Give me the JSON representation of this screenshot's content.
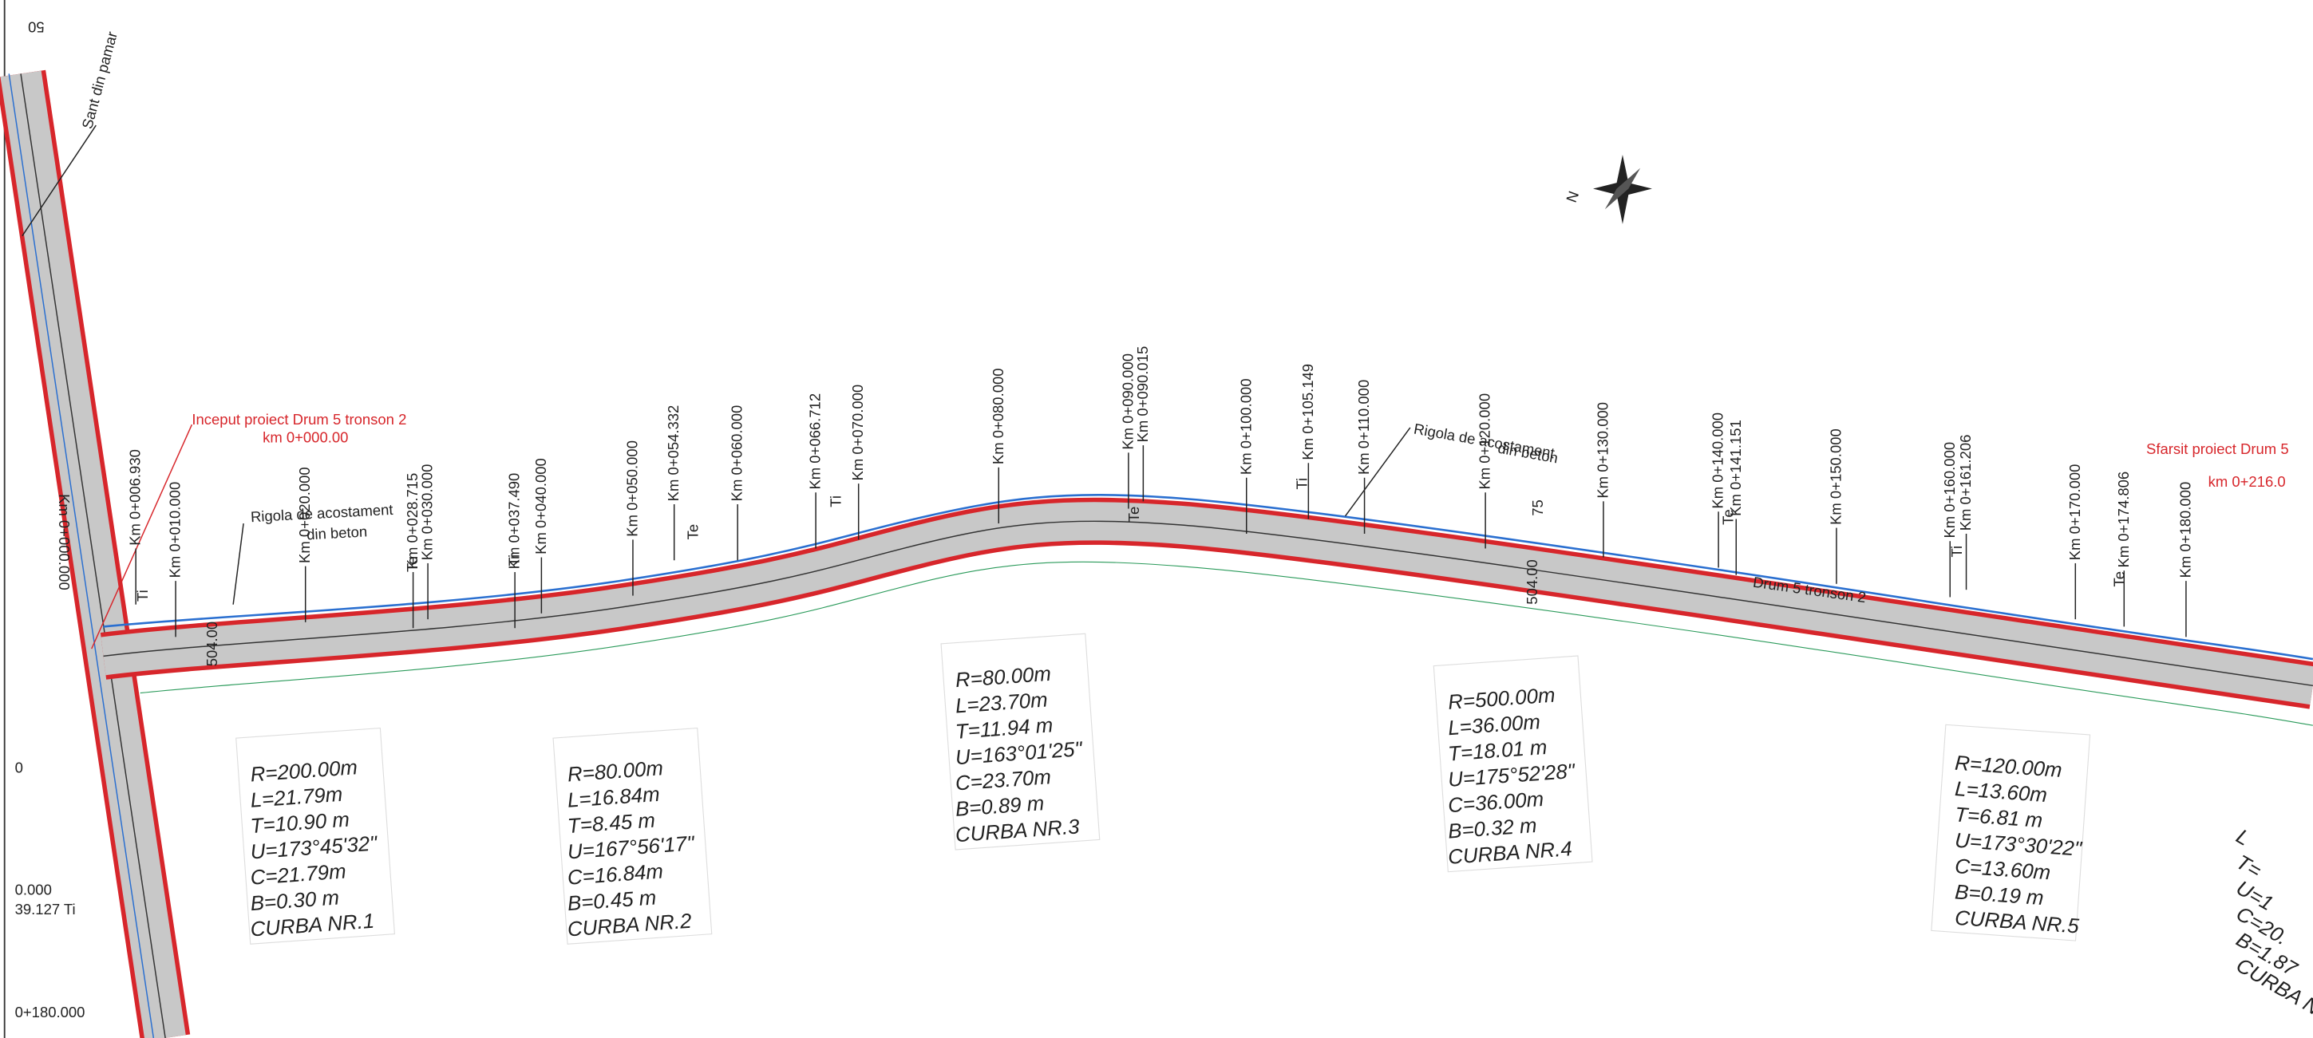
{
  "notes": {
    "ditch": "Sant din pamar",
    "start_title": "Inceput proiect Drum 5 tronson 2",
    "start_km": "km 0+000.00",
    "end_title": "Sfarsit proiect Drum 5",
    "end_km": "km 0+216.0",
    "rigola": [
      [
        "Rigola de acostament",
        "din beton"
      ],
      [
        "Rigola de acostament",
        "din beton"
      ]
    ],
    "road_name": "Drum 5 tronson 2",
    "north": "N"
  },
  "stations": [
    "Km 0+000.000",
    "Km 0+006.930",
    "Km 0+010.000",
    "Km 0+020.000",
    "Km 0+028.715",
    "Km 0+030.000",
    "Km 0+037.490",
    "Km 0+040.000",
    "Km 0+050.000",
    "Km 0+054.332",
    "Km 0+060.000",
    "Km 0+066.712",
    "Km 0+070.000",
    "Km 0+080.000",
    "Km 0+090.000",
    "Km 0+090.015",
    "Km 0+100.000",
    "Km 0+105.149",
    "Km 0+110.000",
    "Km 0+120.000",
    "Km 0+130.000",
    "Km 0+140.000",
    "Km 0+141.151",
    "Km 0+150.000",
    "Km 0+160.000",
    "Km 0+161.206",
    "Km 0+170.000",
    "Km 0+174.806",
    "Km 0+180.000"
  ],
  "tangents": [
    "Ti",
    "Te",
    "Ti",
    "Te",
    "Ti",
    "Te",
    "Ti",
    "Te",
    "Ti",
    "Te"
  ],
  "curves": [
    {
      "lines": [
        "R=200.00m",
        "L=21.79m",
        "T=10.90 m",
        "U=173°45'32\"",
        "C=21.79m",
        "B=0.30 m",
        "CURBA NR.1"
      ]
    },
    {
      "lines": [
        "R=80.00m",
        "L=16.84m",
        "T=8.45 m",
        "U=167°56'17\"",
        "C=16.84m",
        "B=0.45 m",
        "CURBA NR.2"
      ]
    },
    {
      "lines": [
        "R=80.00m",
        "L=23.70m",
        "T=11.94 m",
        "U=163°01'25\"",
        "C=23.70m",
        "B=0.89 m",
        "CURBA NR.3"
      ]
    },
    {
      "lines": [
        "R=500.00m",
        "L=36.00m",
        "T=18.01 m",
        "U=175°52'28\"",
        "C=36.00m",
        "B=0.32 m",
        "CURBA NR.4"
      ]
    },
    {
      "lines": [
        "R=120.00m",
        "L=13.60m",
        "T=6.81 m",
        "U=173°30'22\"",
        "C=13.60m",
        "B=0.19 m",
        "CURBA NR.5"
      ]
    },
    {
      "lines": [
        "L",
        "T=",
        "U=1",
        "C=20.",
        "B=1.87",
        "CURBA N"
      ]
    }
  ],
  "edge_labels": [
    "50",
    "0",
    "0.000",
    "39.127 Ti",
    "0+180.000"
  ],
  "elevations": [
    "504.00",
    "504.00",
    "75"
  ]
}
